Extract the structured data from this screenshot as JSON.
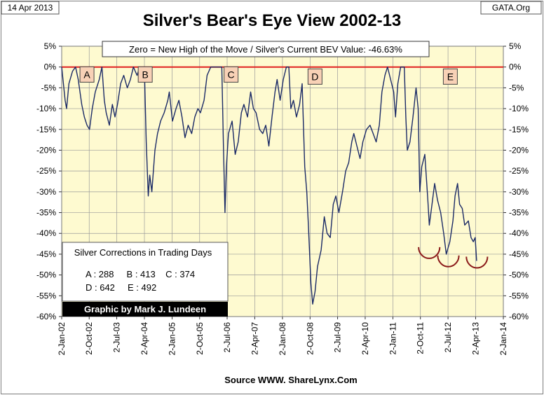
{
  "header": {
    "date": "14 Apr 2013",
    "title": "Silver's Bear's Eye View 2002-13",
    "source_tag": "GATA.Org"
  },
  "chart_data": {
    "type": "line",
    "title": "Silver's Bear's Eye View 2002-13",
    "subtitle": "Zero = New High of the Move / Silver's Current BEV Value: -46.63%",
    "xlabel": "Source WWW. ShareLynx.Com",
    "ylabel": "",
    "ylim": [
      -60,
      5
    ],
    "yticks": [
      5,
      0,
      -5,
      -10,
      -15,
      -20,
      -25,
      -30,
      -35,
      -40,
      -45,
      -50,
      -55,
      -60
    ],
    "ytick_labels": [
      "5%",
      "0%",
      "-5%",
      "-10%",
      "-15%",
      "-20%",
      "-25%",
      "-30%",
      "-35%",
      "-40%",
      "-45%",
      "-50%",
      "-55%",
      "-60%"
    ],
    "xlim": [
      "2002-01-02",
      "2014-01-02"
    ],
    "xticks": [
      "2002-01-02",
      "2002-10-02",
      "2003-07-02",
      "2004-04-02",
      "2005-01-02",
      "2005-10-02",
      "2006-07-02",
      "2007-04-02",
      "2008-01-02",
      "2008-10-02",
      "2009-07-02",
      "2010-04-02",
      "2011-01-02",
      "2011-10-02",
      "2012-07-02",
      "2013-04-02",
      "2014-01-02"
    ],
    "xtick_labels": [
      "2-Jan-02",
      "2-Oct-02",
      "2-Jul-03",
      "2-Apr-04",
      "2-Jan-05",
      "2-Oct-05",
      "2-Jul-06",
      "2-Apr-07",
      "2-Jan-08",
      "2-Oct-08",
      "2-Jul-09",
      "2-Apr-10",
      "2-Jan-11",
      "2-Oct-11",
      "2-Jul-12",
      "2-Apr-13",
      "2-Jan-14"
    ],
    "grid": true,
    "reference_line": {
      "value": 0,
      "color": "#e02020"
    },
    "colors": {
      "plot_background": "#fefad0",
      "line": "#1b2a66",
      "reference": "#e02020",
      "label_box": "#f8d1b6",
      "arc": "#8b1a1a"
    },
    "series": [
      {
        "points": [
          [
            "2002-01-02",
            0
          ],
          [
            "2002-02-05",
            -8
          ],
          [
            "2002-02-20",
            -10
          ],
          [
            "2002-03-15",
            -4
          ],
          [
            "2002-04-20",
            -1
          ],
          [
            "2002-05-20",
            0
          ],
          [
            "2002-06-15",
            -3
          ],
          [
            "2002-07-20",
            -9
          ],
          [
            "2002-08-15",
            -12
          ],
          [
            "2002-09-10",
            -14
          ],
          [
            "2002-10-05",
            -15
          ],
          [
            "2002-11-01",
            -10
          ],
          [
            "2002-12-01",
            -6
          ],
          [
            "2003-01-10",
            -3
          ],
          [
            "2003-02-05",
            0
          ],
          [
            "2003-03-01",
            -8
          ],
          [
            "2003-03-20",
            -11
          ],
          [
            "2003-04-20",
            -14
          ],
          [
            "2003-05-20",
            -9
          ],
          [
            "2003-06-15",
            -12
          ],
          [
            "2003-07-10",
            -9
          ],
          [
            "2003-08-10",
            -4
          ],
          [
            "2003-09-10",
            -2
          ],
          [
            "2003-10-15",
            -5
          ],
          [
            "2003-11-15",
            -3
          ],
          [
            "2003-12-15",
            0
          ],
          [
            "2004-01-20",
            -2
          ],
          [
            "2004-02-15",
            0
          ],
          [
            "2004-03-10",
            0
          ],
          [
            "2004-04-01",
            0
          ],
          [
            "2004-04-20",
            -18
          ],
          [
            "2004-05-10",
            -31
          ],
          [
            "2004-05-25",
            -26
          ],
          [
            "2004-06-15",
            -30
          ],
          [
            "2004-07-15",
            -20
          ],
          [
            "2004-08-10",
            -16
          ],
          [
            "2004-09-10",
            -13
          ],
          [
            "2004-10-15",
            -11
          ],
          [
            "2004-11-20",
            -8
          ],
          [
            "2004-12-05",
            -6
          ],
          [
            "2005-01-05",
            -13
          ],
          [
            "2005-02-10",
            -10
          ],
          [
            "2005-03-10",
            -8
          ],
          [
            "2005-04-10",
            -12
          ],
          [
            "2005-05-10",
            -17
          ],
          [
            "2005-06-10",
            -14
          ],
          [
            "2005-07-15",
            -16
          ],
          [
            "2005-08-15",
            -12
          ],
          [
            "2005-09-15",
            -10
          ],
          [
            "2005-10-10",
            -11
          ],
          [
            "2005-11-15",
            -8
          ],
          [
            "2005-12-15",
            -2
          ],
          [
            "2006-01-20",
            0
          ],
          [
            "2006-02-20",
            0
          ],
          [
            "2006-03-20",
            0
          ],
          [
            "2006-04-20",
            0
          ],
          [
            "2006-05-10",
            0
          ],
          [
            "2006-05-25",
            -18
          ],
          [
            "2006-06-10",
            -35
          ],
          [
            "2006-06-25",
            -24
          ],
          [
            "2006-07-15",
            -16
          ],
          [
            "2006-08-20",
            -13
          ],
          [
            "2006-09-20",
            -21
          ],
          [
            "2006-10-20",
            -18
          ],
          [
            "2006-11-20",
            -11
          ],
          [
            "2006-12-15",
            -9
          ],
          [
            "2007-01-20",
            -12
          ],
          [
            "2007-02-20",
            -6
          ],
          [
            "2007-03-20",
            -10
          ],
          [
            "2007-04-15",
            -11
          ],
          [
            "2007-05-20",
            -15
          ],
          [
            "2007-06-20",
            -16
          ],
          [
            "2007-07-20",
            -14
          ],
          [
            "2007-08-20",
            -19
          ],
          [
            "2007-09-20",
            -12
          ],
          [
            "2007-10-20",
            -6
          ],
          [
            "2007-11-10",
            -3
          ],
          [
            "2007-12-10",
            -8
          ],
          [
            "2008-01-10",
            -3
          ],
          [
            "2008-02-10",
            0
          ],
          [
            "2008-03-05",
            0
          ],
          [
            "2008-03-25",
            -10
          ],
          [
            "2008-04-20",
            -8
          ],
          [
            "2008-05-20",
            -12
          ],
          [
            "2008-06-20",
            -9
          ],
          [
            "2008-07-15",
            -4
          ],
          [
            "2008-08-10",
            -24
          ],
          [
            "2008-08-30",
            -30
          ],
          [
            "2008-09-15",
            -38
          ],
          [
            "2008-10-10",
            -52
          ],
          [
            "2008-10-28",
            -57
          ],
          [
            "2008-11-20",
            -54
          ],
          [
            "2008-12-15",
            -48
          ],
          [
            "2009-01-20",
            -44
          ],
          [
            "2009-02-20",
            -36
          ],
          [
            "2009-03-20",
            -40
          ],
          [
            "2009-04-20",
            -41
          ],
          [
            "2009-05-20",
            -33
          ],
          [
            "2009-06-15",
            -31
          ],
          [
            "2009-07-15",
            -35
          ],
          [
            "2009-08-20",
            -30
          ],
          [
            "2009-09-20",
            -25
          ],
          [
            "2009-10-20",
            -23
          ],
          [
            "2009-11-20",
            -18
          ],
          [
            "2009-12-10",
            -16
          ],
          [
            "2010-01-20",
            -20
          ],
          [
            "2010-02-10",
            -22
          ],
          [
            "2010-03-10",
            -18
          ],
          [
            "2010-04-15",
            -15
          ],
          [
            "2010-05-20",
            -14
          ],
          [
            "2010-06-20",
            -16
          ],
          [
            "2010-07-20",
            -18
          ],
          [
            "2010-08-20",
            -14
          ],
          [
            "2010-09-15",
            -6
          ],
          [
            "2010-10-15",
            -2
          ],
          [
            "2010-11-10",
            0
          ],
          [
            "2010-12-10",
            -3
          ],
          [
            "2011-01-10",
            -6
          ],
          [
            "2011-01-28",
            -12
          ],
          [
            "2011-02-20",
            -4
          ],
          [
            "2011-03-20",
            0
          ],
          [
            "2011-04-25",
            0
          ],
          [
            "2011-05-10",
            -12
          ],
          [
            "2011-05-25",
            -20
          ],
          [
            "2011-06-20",
            -18
          ],
          [
            "2011-07-20",
            -12
          ],
          [
            "2011-08-20",
            -5
          ],
          [
            "2011-09-10",
            -10
          ],
          [
            "2011-09-26",
            -30
          ],
          [
            "2011-10-15",
            -24
          ],
          [
            "2011-11-15",
            -21
          ],
          [
            "2011-12-15",
            -32
          ],
          [
            "2011-12-29",
            -38
          ],
          [
            "2012-01-20",
            -34
          ],
          [
            "2012-02-20",
            -28
          ],
          [
            "2012-03-20",
            -32
          ],
          [
            "2012-04-20",
            -35
          ],
          [
            "2012-05-20",
            -40
          ],
          [
            "2012-06-15",
            -45
          ],
          [
            "2012-07-20",
            -42
          ],
          [
            "2012-08-20",
            -37
          ],
          [
            "2012-09-10",
            -31
          ],
          [
            "2012-10-05",
            -28
          ],
          [
            "2012-10-25",
            -33
          ],
          [
            "2012-11-20",
            -34
          ],
          [
            "2012-12-15",
            -38
          ],
          [
            "2013-01-20",
            -37
          ],
          [
            "2013-02-15",
            -41
          ],
          [
            "2013-03-10",
            -42
          ],
          [
            "2013-03-28",
            -41
          ],
          [
            "2013-04-12",
            -46.63
          ]
        ]
      }
    ],
    "annotations": [
      {
        "label": "A",
        "x": "2002-09-10",
        "y": -1.8
      },
      {
        "label": "B",
        "x": "2004-04-10",
        "y": -1.8
      },
      {
        "label": "C",
        "x": "2006-08-10",
        "y": -1.8
      },
      {
        "label": "D",
        "x": "2008-11-20",
        "y": -2.3
      },
      {
        "label": "E",
        "x": "2012-07-25",
        "y": -2.3
      }
    ],
    "arcs": [
      {
        "center_x": "2011-12-28",
        "center_y": -43.3,
        "radius_days": 105,
        "radius_pct": 2.7
      },
      {
        "center_x": "2012-07-05",
        "center_y": -45.3,
        "radius_days": 105,
        "radius_pct": 2.7
      },
      {
        "center_x": "2013-04-15",
        "center_y": -45.6,
        "radius_days": 105,
        "radius_pct": 2.7
      }
    ],
    "corrections_box": {
      "title": "Silver Corrections in Trading Days",
      "row1": "A : 288     B : 413    C : 374",
      "row2": "D : 642     E : 492"
    },
    "credit": "Graphic by Mark J. Lundeen"
  }
}
